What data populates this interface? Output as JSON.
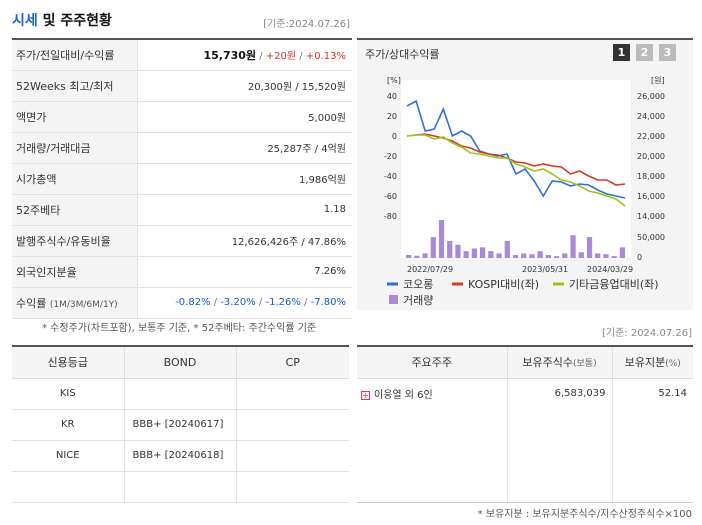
{
  "header": {
    "title_main": "시세",
    "title_rest": " 및 주주현황",
    "base_date": "[기준:2024.07.26]"
  },
  "price_table": {
    "price_label": "주가/전일대비/수익률",
    "price": "15,730원",
    "sep1": " / ",
    "change": "+20원",
    "sep2": " / ",
    "change_pct": "+0.13%",
    "week52_label": "52Weeks 최고/최저",
    "week52_value": "20,300원 / 15,520원",
    "par_label": "액면가",
    "par_value": "5,000원",
    "volume_label": "거래량/거래대금",
    "volume_value": "25,287주 / 4억원",
    "mcap_label": "시가총액",
    "mcap_value": "1,986억원",
    "beta_label": "52주베타",
    "beta_value": "1.18",
    "shares_label": "발행주식수/유동비율",
    "shares_value": "12,626,426주 / 47.86%",
    "foreign_label": "외국인지분율",
    "foreign_value": "7.26%",
    "return_label": "수익률",
    "return_sub": "(1M/3M/6M/1Y)",
    "return_1m": "-0.82%",
    "return_3m": "-3.20%",
    "return_6m": "-1.26%",
    "return_1y": "-7.80%",
    "slash": "/ "
  },
  "footnote_1": "* 수정주가(차트포함), 보통주 기준, * 52주베타: 주간수익률 기준",
  "chart_panel": {
    "title": "주가/상대수익률",
    "pages": [
      "1",
      "2",
      "3"
    ],
    "active_page": "1"
  },
  "chart_data": {
    "type": "line",
    "left_unit": "[%]",
    "right_unit": "[원]",
    "left_ticks": [
      40,
      20,
      0,
      -20,
      -40,
      -60,
      -80
    ],
    "right_ticks": [
      "26,000",
      "24,000",
      "22,000",
      "20,000",
      "18,000",
      "16,000",
      "14,000"
    ],
    "right_volume_ticks": [
      "50,000",
      "0"
    ],
    "ylim_left": [
      -80,
      40
    ],
    "ylim_right": [
      14000,
      26000
    ],
    "x_ticks": [
      "2022/07/29",
      "2023/05/31",
      "2024/03/29"
    ],
    "series": [
      {
        "name": "코오롱",
        "color": "#2f6fd6",
        "values": [
          30,
          35,
          5,
          7,
          27,
          0,
          5,
          0,
          -15,
          -18,
          -20,
          -18,
          -38,
          -33,
          -45,
          -60,
          -45,
          -46,
          -50,
          -48,
          -49,
          -54,
          -58,
          -60,
          -62
        ]
      },
      {
        "name": "KOSPI대비(좌)",
        "color": "#d33b2a",
        "values": [
          0,
          1,
          2,
          0,
          -2,
          -5,
          -10,
          -12,
          -16,
          -18,
          -19,
          -22,
          -26,
          -27,
          -30,
          -28,
          -30,
          -31,
          -38,
          -35,
          -40,
          -44,
          -44,
          -49,
          -48
        ]
      },
      {
        "name": "기타금융업대비(좌)",
        "color": "#9bc41a",
        "values": [
          0,
          1,
          1,
          -3,
          -1,
          -7,
          -11,
          -17,
          -18,
          -20,
          -22,
          -22,
          -28,
          -31,
          -35,
          -33,
          -38,
          -44,
          -46,
          -50,
          -55,
          -57,
          -60,
          -63,
          -70
        ]
      }
    ],
    "volume": {
      "name": "거래량",
      "color": "#a98ad8",
      "values": [
        8,
        6,
        12,
        55,
        100,
        45,
        35,
        18,
        25,
        28,
        18,
        12,
        45,
        8,
        12,
        10,
        18,
        8,
        5,
        12,
        60,
        15,
        55,
        12,
        10,
        5,
        28
      ],
      "max": 100
    }
  },
  "base_date_2": "[기준: 2024.07.26]",
  "credit_table": {
    "headers": [
      "신용등급",
      "BOND",
      "CP"
    ],
    "rows": [
      {
        "agency": "KIS",
        "bond": "",
        "cp": ""
      },
      {
        "agency": "KR",
        "bond": "BBB+  [20240617]",
        "cp": ""
      },
      {
        "agency": "NICE",
        "bond": "BBB+  [20240618]",
        "cp": ""
      },
      {
        "agency": "",
        "bond": "",
        "cp": ""
      }
    ]
  },
  "holder_table": {
    "headers": {
      "holder": "주요주주",
      "shares": "보유주식수",
      "shares_sub": "(보통)",
      "ratio": "보유지분",
      "ratio_sub": "(%)"
    },
    "rows": [
      {
        "name": "이웅열 외 6인",
        "shares": "6,583,039",
        "ratio": "52.14"
      }
    ]
  },
  "footnote_2": "* 보유지분 : 보유지분주식수/지수산정주식수×100"
}
